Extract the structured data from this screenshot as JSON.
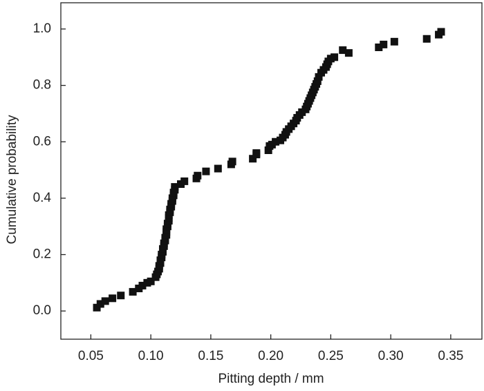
{
  "chart_data": {
    "type": "scatter",
    "x_label": "Pitting depth / mm",
    "y_label": "Cumulative probability",
    "color": "#111111",
    "xlim": [
      0.025,
      0.376
    ],
    "ylim": [
      -0.1,
      1.093
    ],
    "xticks": [
      {
        "value": 0.05,
        "label": "0.05"
      },
      {
        "value": 0.1,
        "label": "0.10"
      },
      {
        "value": 0.15,
        "label": "0.15"
      },
      {
        "value": 0.2,
        "label": "0.20"
      },
      {
        "value": 0.25,
        "label": "0.25"
      },
      {
        "value": 0.3,
        "label": "0.30"
      },
      {
        "value": 0.35,
        "label": "0.35"
      }
    ],
    "yticks": [
      {
        "value": 0,
        "label": "0.0"
      },
      0.2,
      0.4,
      0.6,
      0.8,
      {
        "value": 1,
        "label": "1.0"
      }
    ],
    "x": [
      0.055,
      0.058,
      0.062,
      0.068,
      0.075,
      0.085,
      0.09,
      0.093,
      0.097,
      0.1,
      0.104,
      0.105,
      0.106,
      0.107,
      0.107,
      0.108,
      0.108,
      0.109,
      0.109,
      0.11,
      0.11,
      0.111,
      0.111,
      0.112,
      0.112,
      0.113,
      0.113,
      0.113,
      0.114,
      0.114,
      0.115,
      0.115,
      0.115,
      0.116,
      0.116,
      0.117,
      0.117,
      0.118,
      0.118,
      0.119,
      0.119,
      0.12,
      0.12,
      0.125,
      0.128,
      0.138,
      0.139,
      0.146,
      0.156,
      0.167,
      0.168,
      0.185,
      0.188,
      0.188,
      0.198,
      0.199,
      0.201,
      0.204,
      0.208,
      0.21,
      0.212,
      0.213,
      0.215,
      0.217,
      0.219,
      0.221,
      0.222,
      0.224,
      0.226,
      0.229,
      0.23,
      0.231,
      0.232,
      0.233,
      0.234,
      0.235,
      0.236,
      0.237,
      0.238,
      0.239,
      0.24,
      0.242,
      0.244,
      0.246,
      0.247,
      0.248,
      0.25,
      0.253,
      0.26,
      0.265,
      0.29,
      0.294,
      0.303,
      0.33,
      0.34,
      0.342
    ],
    "values": [
      0.012,
      0.025,
      0.035,
      0.045,
      0.055,
      0.068,
      0.08,
      0.09,
      0.1,
      0.105,
      0.12,
      0.13,
      0.14,
      0.15,
      0.16,
      0.17,
      0.18,
      0.19,
      0.2,
      0.21,
      0.22,
      0.23,
      0.24,
      0.25,
      0.26,
      0.27,
      0.28,
      0.29,
      0.3,
      0.31,
      0.32,
      0.33,
      0.34,
      0.35,
      0.36,
      0.37,
      0.38,
      0.39,
      0.4,
      0.41,
      0.42,
      0.43,
      0.44,
      0.45,
      0.46,
      0.47,
      0.48,
      0.495,
      0.505,
      0.52,
      0.53,
      0.54,
      0.555,
      0.56,
      0.57,
      0.585,
      0.59,
      0.6,
      0.605,
      0.615,
      0.625,
      0.635,
      0.645,
      0.655,
      0.665,
      0.675,
      0.685,
      0.695,
      0.705,
      0.715,
      0.725,
      0.735,
      0.745,
      0.755,
      0.765,
      0.775,
      0.785,
      0.795,
      0.805,
      0.815,
      0.83,
      0.845,
      0.855,
      0.865,
      0.875,
      0.885,
      0.895,
      0.9,
      0.925,
      0.915,
      0.935,
      0.945,
      0.955,
      0.965,
      0.98,
      0.99
    ]
  }
}
